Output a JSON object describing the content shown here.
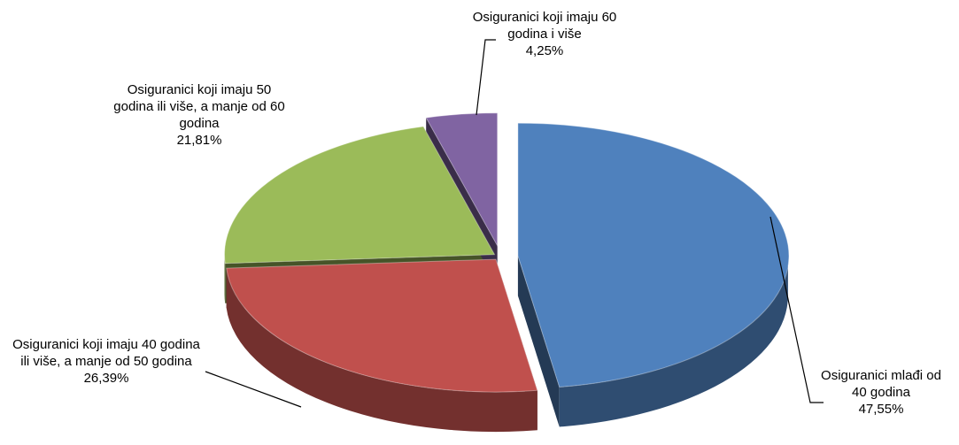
{
  "chart_data": {
    "type": "pie",
    "categories": [
      "Osiguranici mlađi od 40 godina",
      "Osiguranici koji imaju 40 godina ili više, a manje od 50 godina",
      "Osiguranici koji imaju 50 godina ili više, a manje od 60 godina",
      "Osiguranici koji imaju 60 godina i više"
    ],
    "values": [
      47.55,
      26.39,
      21.81,
      4.25
    ],
    "value_labels": [
      "47,55%",
      "26,39%",
      "21,81%",
      "4,25%"
    ],
    "colors": [
      "#4f81bd",
      "#c0504d",
      "#9bbb59",
      "#8064a2"
    ]
  }
}
